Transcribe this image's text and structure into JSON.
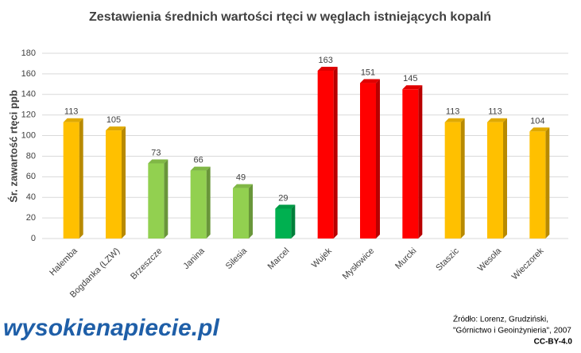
{
  "chart_data": {
    "type": "bar",
    "title": "Zestawienia średnich wartości rtęci w węglach istniejących kopalń",
    "y_label": "Śr. zawartość rtęci ppb",
    "categories": [
      "Halemba",
      "Bogdanka (LZW)",
      "Brzeszcze",
      "Janina",
      "Silesia",
      "Marcel",
      "Wujek",
      "Mysłowice",
      "Murcki",
      "Staszic",
      "Wesoła",
      "Wieczorek"
    ],
    "values": [
      113,
      105,
      73,
      66,
      49,
      29,
      163,
      151,
      145,
      113,
      113,
      104
    ],
    "colors": [
      "#ffc000",
      "#ffc000",
      "#92d050",
      "#92d050",
      "#92d050",
      "#00b050",
      "#ff0000",
      "#ff0000",
      "#ff0000",
      "#ffc000",
      "#ffc000",
      "#ffc000"
    ],
    "ylim": [
      0,
      180
    ],
    "yticks": [
      0,
      20,
      40,
      60,
      80,
      100,
      120,
      140,
      160,
      180
    ],
    "grid": true
  },
  "source": [
    "Źródło: Lorenz, Grudziński,",
    "\"Górnictwo i Geoinżynieria\", 2007",
    "CC-BY-4.0"
  ],
  "logo": "wysokienapiecie.pl"
}
